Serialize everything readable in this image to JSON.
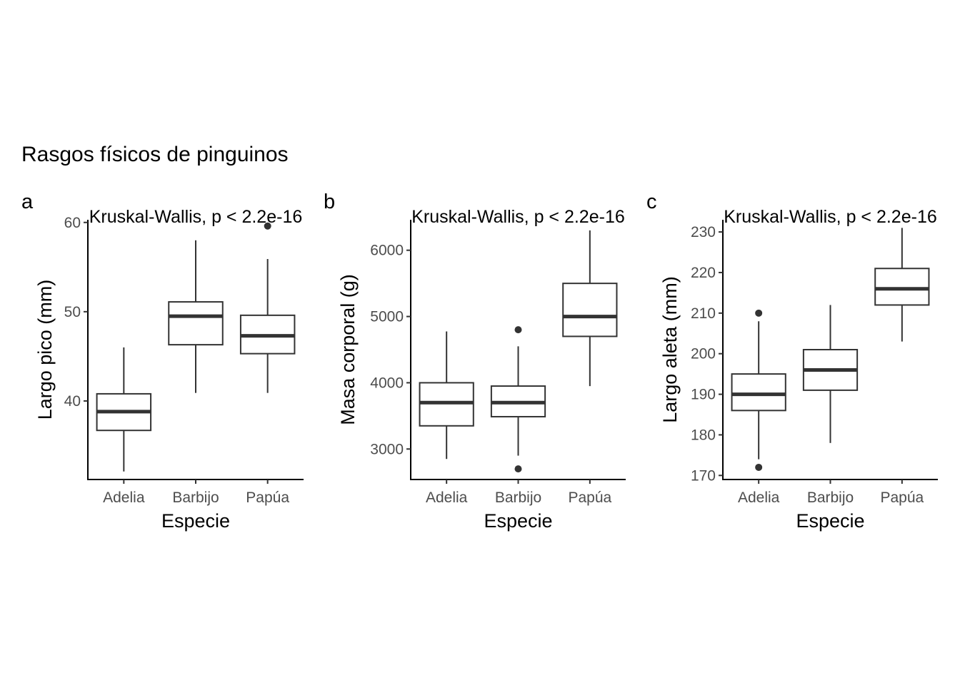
{
  "figure": {
    "title": "Rasgos físicos de pinguinos"
  },
  "chart_data": [
    {
      "type": "box",
      "tag": "a",
      "annotation": "Kruskal-Wallis, p < 2.2e-16",
      "categories": [
        "Adelia",
        "Barbijo",
        "Papúa"
      ],
      "xlabel": "Especie",
      "ylabel": "Largo pico (mm)",
      "ylim": [
        31.2,
        60.3
      ],
      "yticks": [
        40,
        50,
        60
      ],
      "boxes": [
        {
          "category": "Adelia",
          "whisker_low": 32.1,
          "q1": 36.7,
          "median": 38.8,
          "q3": 40.8,
          "whisker_high": 46.0,
          "outliers": []
        },
        {
          "category": "Barbijo",
          "whisker_low": 40.9,
          "q1": 46.3,
          "median": 49.5,
          "q3": 51.1,
          "whisker_high": 58.0,
          "outliers": []
        },
        {
          "category": "Papúa",
          "whisker_low": 40.9,
          "q1": 45.3,
          "median": 47.3,
          "q3": 49.6,
          "whisker_high": 55.9,
          "outliers": [
            59.6
          ]
        }
      ]
    },
    {
      "type": "box",
      "tag": "b",
      "annotation": "Kruskal-Wallis, p < 2.2e-16",
      "categories": [
        "Adelia",
        "Barbijo",
        "Papúa"
      ],
      "xlabel": "Especie",
      "ylabel": "Masa corporal (g)",
      "ylim": [
        2540,
        6460
      ],
      "yticks": [
        3000,
        4000,
        5000,
        6000
      ],
      "boxes": [
        {
          "category": "Adelia",
          "whisker_low": 2850,
          "q1": 3350,
          "median": 3700,
          "q3": 4000,
          "whisker_high": 4775,
          "outliers": []
        },
        {
          "category": "Barbijo",
          "whisker_low": 2900,
          "q1": 3488,
          "median": 3700,
          "q3": 3950,
          "whisker_high": 4550,
          "outliers": [
            4800,
            2700
          ]
        },
        {
          "category": "Papúa",
          "whisker_low": 3950,
          "q1": 4700,
          "median": 5000,
          "q3": 5500,
          "whisker_high": 6300,
          "outliers": []
        }
      ]
    },
    {
      "type": "box",
      "tag": "c",
      "annotation": "Kruskal-Wallis, p < 2.2e-16",
      "categories": [
        "Adelia",
        "Barbijo",
        "Papúa"
      ],
      "xlabel": "Especie",
      "ylabel": "Largo aleta (mm)",
      "ylim": [
        169.0,
        233.0
      ],
      "yticks": [
        170,
        180,
        190,
        200,
        210,
        220,
        230
      ],
      "boxes": [
        {
          "category": "Adelia",
          "whisker_low": 174,
          "q1": 186,
          "median": 190,
          "q3": 195,
          "whisker_high": 208,
          "outliers": [
            210,
            172
          ]
        },
        {
          "category": "Barbijo",
          "whisker_low": 178,
          "q1": 191,
          "median": 196,
          "q3": 201,
          "whisker_high": 212,
          "outliers": []
        },
        {
          "category": "Papúa",
          "whisker_low": 203,
          "q1": 212,
          "median": 216,
          "q3": 221,
          "whisker_high": 231,
          "outliers": []
        }
      ]
    }
  ]
}
